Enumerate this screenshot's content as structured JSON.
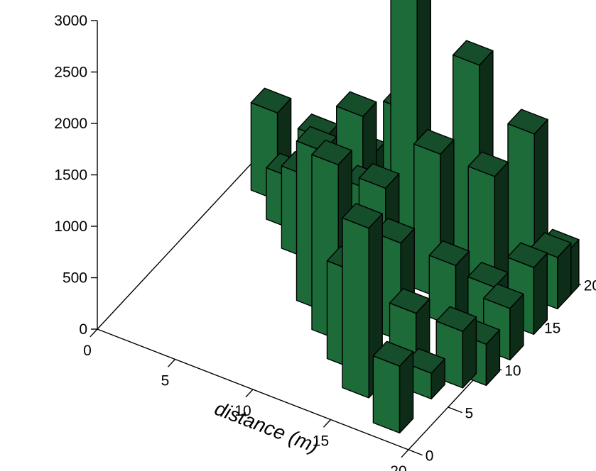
{
  "chart_data": {
    "type": "bar3d",
    "xlabel": "distance (m)",
    "ylabel": "",
    "zlabel": "",
    "xlim": [
      0,
      20
    ],
    "ylim": [
      0,
      20
    ],
    "zlim": [
      0,
      3000
    ],
    "x_ticks": [
      "0",
      "5",
      "10",
      "15",
      "20"
    ],
    "y_ticks": [
      "0",
      "5",
      "10",
      "15",
      "20"
    ],
    "z_ticks": [
      "0",
      "500",
      "1000",
      "1500",
      "2000",
      "2500",
      "3000"
    ],
    "bars": [
      {
        "x": 2,
        "y": 18,
        "z": 850
      },
      {
        "x": 4,
        "y": 16,
        "z": 500
      },
      {
        "x": 6,
        "y": 14,
        "z": 800
      },
      {
        "x": 8,
        "y": 12,
        "z": 500
      },
      {
        "x": 9,
        "y": 10,
        "z": 1550
      },
      {
        "x": 11,
        "y": 8,
        "z": 1700
      },
      {
        "x": 13,
        "y": 6,
        "z": 950
      },
      {
        "x": 15,
        "y": 4,
        "z": 1650
      },
      {
        "x": 18,
        "y": 2,
        "z": 650
      },
      {
        "x": 4,
        "y": 20,
        "z": 550
      },
      {
        "x": 6,
        "y": 18,
        "z": 450
      },
      {
        "x": 8,
        "y": 17,
        "z": 1250
      },
      {
        "x": 10,
        "y": 14,
        "z": 900
      },
      {
        "x": 12,
        "y": 12,
        "z": 1200
      },
      {
        "x": 14,
        "y": 10,
        "z": 950
      },
      {
        "x": 16,
        "y": 8,
        "z": 550
      },
      {
        "x": 18,
        "y": 6,
        "z": 250
      },
      {
        "x": 7,
        "y": 20,
        "z": 550
      },
      {
        "x": 10,
        "y": 19,
        "z": 1250
      },
      {
        "x": 12,
        "y": 16,
        "z": 3000
      },
      {
        "x": 14,
        "y": 15,
        "z": 1400
      },
      {
        "x": 16,
        "y": 13,
        "z": 600
      },
      {
        "x": 19,
        "y": 8,
        "z": 550
      },
      {
        "x": 12,
        "y": 19,
        "z": 400
      },
      {
        "x": 15,
        "y": 18,
        "z": 600
      },
      {
        "x": 16,
        "y": 16,
        "z": 2300
      },
      {
        "x": 18,
        "y": 14,
        "z": 1500
      },
      {
        "x": 19,
        "y": 12,
        "z": 650
      },
      {
        "x": 20,
        "y": 9,
        "z": 400
      },
      {
        "x": 16,
        "y": 20,
        "z": 300
      },
      {
        "x": 18,
        "y": 19,
        "z": 1500
      },
      {
        "x": 20,
        "y": 18,
        "z": 500
      },
      {
        "x": 20,
        "y": 15,
        "z": 650
      },
      {
        "x": 20,
        "y": 12,
        "z": 500
      },
      {
        "x": 20,
        "y": 19,
        "z": 450
      },
      {
        "x": 19,
        "y": 18,
        "z": 300
      }
    ],
    "bar_color": "#1e6b3a",
    "grid": false
  }
}
